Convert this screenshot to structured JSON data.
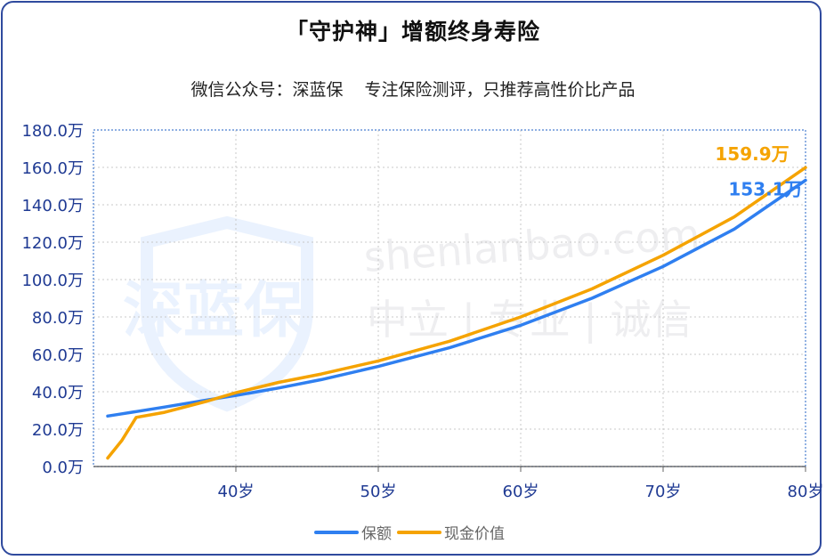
{
  "title": "「守护神」增额终身寿险",
  "subtitle_left": "微信公众号：深蓝保",
  "subtitle_right": "专注保险测评，只推荐高性价比产品",
  "watermark": {
    "logo_text": "深蓝保",
    "url_text": "shenlanbao.com",
    "slogan_text": "中立 | 专业 | 诚信"
  },
  "chart_data": {
    "type": "line",
    "x": [
      31,
      32,
      33,
      35,
      38,
      40,
      43,
      46,
      50,
      55,
      60,
      65,
      70,
      75,
      80
    ],
    "series": [
      {
        "name": "保额",
        "color": "#2f7ff0",
        "values": [
          27.0,
          28.2,
          29.4,
          31.8,
          35.6,
          38.0,
          42.0,
          46.5,
          53.5,
          63.5,
          75.5,
          90.0,
          107.0,
          127.0,
          153.1
        ]
      },
      {
        "name": "现金价值",
        "color": "#f5a300",
        "values": [
          4.5,
          14.0,
          26.3,
          29.0,
          35.0,
          39.5,
          45.0,
          49.5,
          56.5,
          67.0,
          80.0,
          95.0,
          113.0,
          133.5,
          159.9
        ]
      }
    ],
    "xlim": [
      30,
      80
    ],
    "ylim": [
      0,
      180
    ],
    "y_ticks": [
      "0.0万",
      "20.0万",
      "40.0万",
      "60.0万",
      "80.0万",
      "100.0万",
      "120.0万",
      "140.0万",
      "160.0万",
      "180.0万"
    ],
    "x_ticks": [
      "40岁",
      "50岁",
      "60岁",
      "70岁",
      "80岁"
    ],
    "end_labels": [
      "153.1万",
      "159.9万"
    ],
    "legend_position": "bottom-center",
    "grid": true
  }
}
